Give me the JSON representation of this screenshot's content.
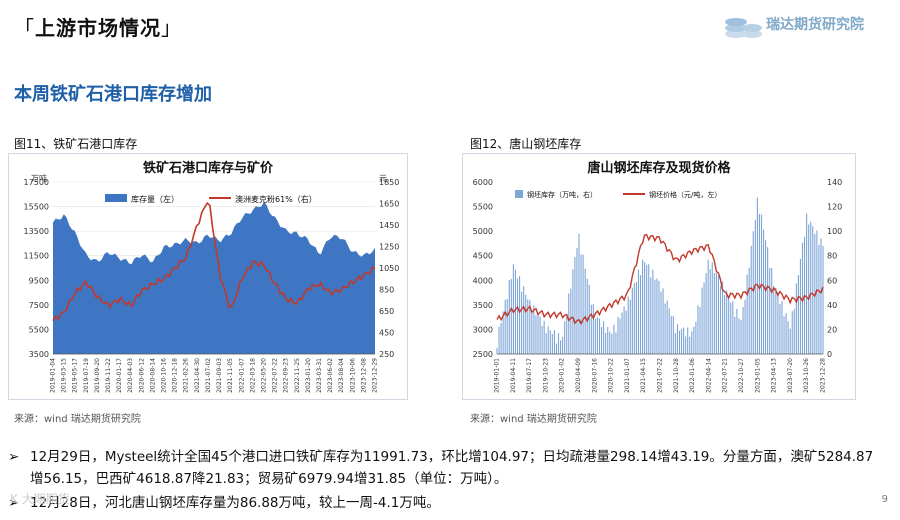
{
  "header": {
    "title": "上游市场情况",
    "bracket_open": "「",
    "bracket_close": "」",
    "logo_text": "瑞达期货研究院"
  },
  "section_title": "本周铁矿石港口库存增加",
  "figures": [
    {
      "caption": "图11、铁矿石港口库存",
      "source": "来源：wind   瑞达期货研究院"
    },
    {
      "caption": "图12、唐山钢坯库存",
      "source": "来源：wind   瑞达期货研究院"
    }
  ],
  "bullets": [
    "12月29日，Mysteel统计全国45个港口进口铁矿库存为11991.73，环比增104.97；日均疏港量298.14增43.19。分量方面，澳矿5284.87",
    "增56.15，巴西矿4618.87降21.83；贸易矿6979.94增31.85（单位：万吨）。",
    "12月28日，河北唐山钢坯库存量为86.88万吨，较上一周-4.1万吨。"
  ],
  "page_number": "9",
  "watermark": "K 大期期货",
  "colors": {
    "bar_blue": "#3f76c4",
    "line_red": "#c0392b",
    "title_blue": "#1f5fa8"
  },
  "chart_data": [
    {
      "type": "area",
      "title": "铁矿石港口库存与矿价",
      "ylabel_left": "万吨",
      "ylabel_right": "元",
      "ylim_left": [
        3500,
        17500
      ],
      "ylim_right": [
        250,
        1850
      ],
      "yticks_left": [
        3500,
        5500,
        7500,
        9500,
        11500,
        13500,
        15500,
        17500
      ],
      "yticks_right": [
        250,
        450,
        650,
        850,
        1050,
        1250,
        1450,
        1650,
        1850
      ],
      "x": [
        "2019-01-04",
        "2019-03-15",
        "2019-05-17",
        "2019-07-19",
        "2019-09-20",
        "2019-11-22",
        "2020-01-17",
        "2020-04-03",
        "2020-06-12",
        "2020-08-14",
        "2020-10-16",
        "2020-12-18",
        "2021-02-26",
        "2021-04-30",
        "2021-07-02",
        "2021-09-03",
        "2021-11-05",
        "2022-01-07",
        "2022-03-18",
        "2022-05-20",
        "2022-07-22",
        "2022-09-23",
        "2022-11-25",
        "2023-01-20",
        "2023-03-31",
        "2023-06-02",
        "2023-08-04",
        "2023-10-06",
        "2023-12-08",
        "2023-12-29"
      ],
      "series": [
        {
          "name": "库存量（左）",
          "axis": "left",
          "kind": "area",
          "values": [
            14200,
            14800,
            13300,
            11500,
            11000,
            11800,
            11300,
            10900,
            11600,
            11000,
            12200,
            12400,
            12800,
            12500,
            13200,
            12700,
            13300,
            14600,
            15200,
            15800,
            14500,
            13500,
            13300,
            12800,
            11600,
            13100,
            13000,
            11800,
            11500,
            12000
          ]
        },
        {
          "name": "澳洲麦克粉61%（右）",
          "axis": "right",
          "kind": "line",
          "values": [
            560,
            640,
            820,
            920,
            780,
            700,
            760,
            700,
            840,
            900,
            950,
            1050,
            1150,
            1450,
            1700,
            1000,
            650,
            950,
            1100,
            1080,
            900,
            760,
            720,
            860,
            900,
            820,
            850,
            920,
            980,
            1050
          ]
        }
      ]
    },
    {
      "type": "bar",
      "title": "唐山钢坯库存及现货价格",
      "ylim_left": [
        2500,
        6000
      ],
      "ylim_right": [
        0,
        140
      ],
      "yticks_left": [
        2500,
        3000,
        3500,
        4000,
        4500,
        5000,
        5500,
        6000
      ],
      "yticks_right": [
        0,
        20,
        40,
        60,
        80,
        100,
        120,
        140
      ],
      "x": [
        "2019-01-01",
        "2019-04-11",
        "2019-07-17",
        "2019-10-23",
        "2020-01-02",
        "2020-04-09",
        "2020-07-16",
        "2020-10-22",
        "2021-01-07",
        "2021-04-15",
        "2021-07-22",
        "2021-10-28",
        "2022-01-06",
        "2022-04-14",
        "2022-07-21",
        "2022-10-27",
        "2023-01-05",
        "2023-04-13",
        "2023-07-20",
        "2023-10-26",
        "2023-12-28"
      ],
      "series": [
        {
          "name": "钢坯库存（万吨，右）",
          "axis": "right",
          "kind": "bar",
          "values": [
            10,
            70,
            40,
            20,
            10,
            95,
            30,
            15,
            40,
            75,
            55,
            20,
            15,
            75,
            50,
            25,
            125,
            55,
            20,
            110,
            86.88
          ]
        },
        {
          "name": "钢坯价格（元/吨，左）",
          "axis": "left",
          "kind": "line",
          "values": [
            3200,
            3400,
            3420,
            3300,
            3300,
            3150,
            3300,
            3500,
            3700,
            4900,
            4850,
            4400,
            4600,
            4700,
            3700,
            3700,
            3900,
            3800,
            3600,
            3650,
            3820
          ]
        }
      ]
    }
  ]
}
